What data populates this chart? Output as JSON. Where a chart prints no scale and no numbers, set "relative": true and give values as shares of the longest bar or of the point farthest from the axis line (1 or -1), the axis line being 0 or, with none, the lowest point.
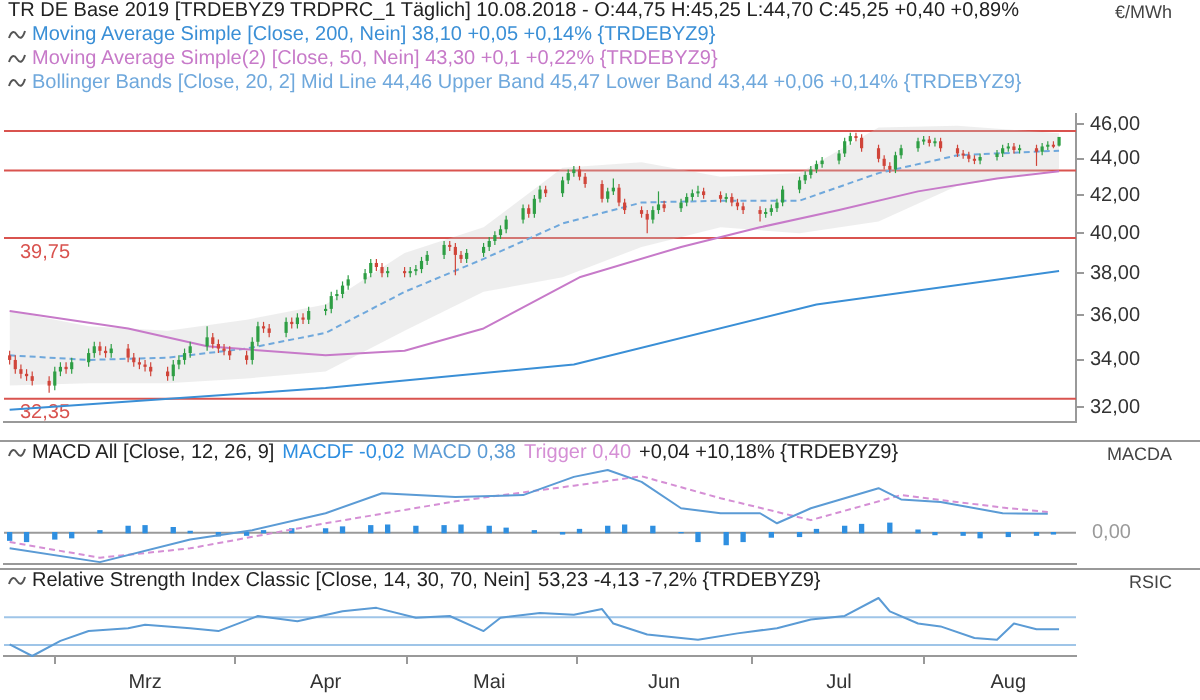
{
  "chart_data": [
    {
      "type": "candlestick",
      "title": "TR DE Base 2019 [TRDEBYZ9 TRDPRC_1 Täglich] 10.08.2018 - O:44,75 H:45,25 L:44,70 C:45,25 +0,40 +0,89%",
      "ylabel": "€/MWh",
      "log": true,
      "legend": "top",
      "tick_labels": "y",
      "x": [
        "2018-02-05",
        "2018-02-06",
        "2018-02-07",
        "2018-02-08",
        "2018-02-09",
        "2018-02-12",
        "2018-02-13",
        "2018-02-14",
        "2018-02-15",
        "2018-02-16",
        "2018-02-19",
        "2018-02-20",
        "2018-02-21",
        "2018-02-22",
        "2018-02-23",
        "2018-02-26",
        "2018-02-27",
        "2018-02-28",
        "2018-03-01",
        "2018-03-02",
        "2018-03-05",
        "2018-03-06",
        "2018-03-07",
        "2018-03-08",
        "2018-03-09",
        "2018-03-12",
        "2018-03-13",
        "2018-03-14",
        "2018-03-15",
        "2018-03-16",
        "2018-03-19",
        "2018-03-20",
        "2018-03-21",
        "2018-03-22",
        "2018-03-23",
        "2018-03-26",
        "2018-03-27",
        "2018-03-28",
        "2018-03-29",
        "2018-03-30",
        "2018-04-02",
        "2018-04-03",
        "2018-04-04",
        "2018-04-05",
        "2018-04-06",
        "2018-04-09",
        "2018-04-10",
        "2018-04-11",
        "2018-04-12",
        "2018-04-13",
        "2018-04-16",
        "2018-04-17",
        "2018-04-18",
        "2018-04-19",
        "2018-04-20",
        "2018-04-23",
        "2018-04-24",
        "2018-04-25",
        "2018-04-26",
        "2018-04-27",
        "2018-04-30",
        "2018-05-01",
        "2018-05-02",
        "2018-05-03",
        "2018-05-04",
        "2018-05-07",
        "2018-05-08",
        "2018-05-09",
        "2018-05-10",
        "2018-05-11",
        "2018-05-14",
        "2018-05-15",
        "2018-05-16",
        "2018-05-17",
        "2018-05-18",
        "2018-05-21",
        "2018-05-22",
        "2018-05-23",
        "2018-05-24",
        "2018-05-25",
        "2018-05-28",
        "2018-05-29",
        "2018-05-30",
        "2018-05-31",
        "2018-06-01",
        "2018-06-04",
        "2018-06-05",
        "2018-06-06",
        "2018-06-07",
        "2018-06-08",
        "2018-06-11",
        "2018-06-12",
        "2018-06-13",
        "2018-06-14",
        "2018-06-15",
        "2018-06-18",
        "2018-06-19",
        "2018-06-20",
        "2018-06-21",
        "2018-06-22",
        "2018-06-25",
        "2018-06-26",
        "2018-06-27",
        "2018-06-28",
        "2018-06-29",
        "2018-07-02",
        "2018-07-03",
        "2018-07-04",
        "2018-07-05",
        "2018-07-06",
        "2018-07-09",
        "2018-07-10",
        "2018-07-11",
        "2018-07-12",
        "2018-07-13",
        "2018-07-16",
        "2018-07-17",
        "2018-07-18",
        "2018-07-19",
        "2018-07-20",
        "2018-07-23",
        "2018-07-24",
        "2018-07-25",
        "2018-07-26",
        "2018-07-27",
        "2018-07-30",
        "2018-07-31",
        "2018-08-01",
        "2018-08-02",
        "2018-08-03",
        "2018-08-06",
        "2018-08-07",
        "2018-08-08",
        "2018-08-09",
        "2018-08-10"
      ],
      "ohlc": [
        [
          34.2,
          34.4,
          33.8,
          34.0
        ],
        [
          34.0,
          34.2,
          33.4,
          33.6
        ],
        [
          33.6,
          33.8,
          33.2,
          33.4
        ],
        [
          33.4,
          33.6,
          33.1,
          33.3
        ],
        [
          33.3,
          33.5,
          32.9,
          33.1
        ],
        [
          33.1,
          33.3,
          32.6,
          32.9
        ],
        [
          32.9,
          33.7,
          32.7,
          33.5
        ],
        [
          33.5,
          33.9,
          33.3,
          33.7
        ],
        [
          33.7,
          33.9,
          33.4,
          33.6
        ],
        [
          33.6,
          34.1,
          33.4,
          33.9
        ],
        [
          33.9,
          34.5,
          33.7,
          34.3
        ],
        [
          34.3,
          34.8,
          34.1,
          34.6
        ],
        [
          34.6,
          34.8,
          34.2,
          34.4
        ],
        [
          34.4,
          34.6,
          34.1,
          34.3
        ],
        [
          34.3,
          34.7,
          34.1,
          34.5
        ],
        [
          34.5,
          34.7,
          33.9,
          34.1
        ],
        [
          34.1,
          34.3,
          33.7,
          33.9
        ],
        [
          33.9,
          34.1,
          33.6,
          33.8
        ],
        [
          33.8,
          34.0,
          33.5,
          33.7
        ],
        [
          33.7,
          33.9,
          33.3,
          33.5
        ],
        [
          33.5,
          33.7,
          33.1,
          33.3
        ],
        [
          33.3,
          34.0,
          33.1,
          33.8
        ],
        [
          33.8,
          34.2,
          33.6,
          34.0
        ],
        [
          34.0,
          34.5,
          33.8,
          34.3
        ],
        [
          34.3,
          34.8,
          34.1,
          34.6
        ],
        [
          34.6,
          35.5,
          34.4,
          35.0
        ],
        [
          35.0,
          35.2,
          34.5,
          34.7
        ],
        [
          34.7,
          34.9,
          34.3,
          34.5
        ],
        [
          34.5,
          34.7,
          34.2,
          34.4
        ],
        [
          34.4,
          34.6,
          34.0,
          34.2
        ],
        [
          34.2,
          34.4,
          33.8,
          34.0
        ],
        [
          34.0,
          35.0,
          33.8,
          34.8
        ],
        [
          34.8,
          35.7,
          34.6,
          35.5
        ],
        [
          35.5,
          35.7,
          35.2,
          35.4
        ],
        [
          35.4,
          35.6,
          35.0,
          35.2
        ],
        [
          35.2,
          35.9,
          35.0,
          35.7
        ],
        [
          35.7,
          35.9,
          35.4,
          35.6
        ],
        [
          35.6,
          36.1,
          35.4,
          35.9
        ],
        [
          35.9,
          36.1,
          35.6,
          35.8
        ],
        [
          35.8,
          36.4,
          35.6,
          36.2
        ],
        [
          36.2,
          36.5,
          36.0,
          36.3
        ],
        [
          36.3,
          37.1,
          36.1,
          36.9
        ],
        [
          36.9,
          37.2,
          36.7,
          37.0
        ],
        [
          37.0,
          37.6,
          36.8,
          37.4
        ],
        [
          37.4,
          37.9,
          37.2,
          37.7
        ],
        [
          37.7,
          38.2,
          37.5,
          38.0
        ],
        [
          38.0,
          38.7,
          37.8,
          38.5
        ],
        [
          38.5,
          38.7,
          38.1,
          38.3
        ],
        [
          38.3,
          38.5,
          37.8,
          38.0
        ],
        [
          38.0,
          38.3,
          37.8,
          38.1
        ],
        [
          38.1,
          38.3,
          37.8,
          38.0
        ],
        [
          38.0,
          38.3,
          37.8,
          38.1
        ],
        [
          38.1,
          38.4,
          37.9,
          38.2
        ],
        [
          38.2,
          38.8,
          38.0,
          38.6
        ],
        [
          38.6,
          39.1,
          38.4,
          38.9
        ],
        [
          38.9,
          39.6,
          38.7,
          39.4
        ],
        [
          39.4,
          39.6,
          39.1,
          39.3
        ],
        [
          39.3,
          39.5,
          37.9,
          38.9
        ],
        [
          38.9,
          39.1,
          38.5,
          38.7
        ],
        [
          38.7,
          39.2,
          38.5,
          39.0
        ],
        [
          39.0,
          39.5,
          38.8,
          39.3
        ],
        [
          39.3,
          39.8,
          39.1,
          39.6
        ],
        [
          39.6,
          40.1,
          39.4,
          39.9
        ],
        [
          39.9,
          40.4,
          39.7,
          40.2
        ],
        [
          40.2,
          40.9,
          40.0,
          40.7
        ],
        [
          40.7,
          41.5,
          40.5,
          41.3
        ],
        [
          41.3,
          41.5,
          40.8,
          41.0
        ],
        [
          41.0,
          42.0,
          40.8,
          41.8
        ],
        [
          41.8,
          42.5,
          41.6,
          42.3
        ],
        [
          42.3,
          42.5,
          41.9,
          42.1
        ],
        [
          42.1,
          43.0,
          41.9,
          42.8
        ],
        [
          42.8,
          43.4,
          42.6,
          43.2
        ],
        [
          43.2,
          43.6,
          43.0,
          43.4
        ],
        [
          43.4,
          43.6,
          42.8,
          43.0
        ],
        [
          43.0,
          43.2,
          42.4,
          42.6
        ],
        [
          42.6,
          42.8,
          41.6,
          41.8
        ],
        [
          41.8,
          42.4,
          41.6,
          42.2
        ],
        [
          42.2,
          42.9,
          42.0,
          42.4
        ],
        [
          42.4,
          42.6,
          41.4,
          41.6
        ],
        [
          41.6,
          41.8,
          41.0,
          41.2
        ],
        [
          41.2,
          41.4,
          40.8,
          41.0
        ],
        [
          41.0,
          41.2,
          40.0,
          40.7
        ],
        [
          40.7,
          41.4,
          40.5,
          41.2
        ],
        [
          41.2,
          42.2,
          41.0,
          41.5
        ],
        [
          41.5,
          41.7,
          41.1,
          41.3
        ],
        [
          41.3,
          41.8,
          41.1,
          41.6
        ],
        [
          41.6,
          42.1,
          41.4,
          41.9
        ],
        [
          41.9,
          42.3,
          41.7,
          42.1
        ],
        [
          42.1,
          42.5,
          41.9,
          42.2
        ],
        [
          42.2,
          42.4,
          41.8,
          42.0
        ],
        [
          42.0,
          42.2,
          41.6,
          41.8
        ],
        [
          41.8,
          42.1,
          41.6,
          41.9
        ],
        [
          41.9,
          42.1,
          41.4,
          41.6
        ],
        [
          41.6,
          41.8,
          41.2,
          41.4
        ],
        [
          41.4,
          41.6,
          41.0,
          41.2
        ],
        [
          41.2,
          41.4,
          40.6,
          41.0
        ],
        [
          41.0,
          41.3,
          40.8,
          41.1
        ],
        [
          41.1,
          41.5,
          40.9,
          41.3
        ],
        [
          41.3,
          41.8,
          41.1,
          41.6
        ],
        [
          41.6,
          42.5,
          41.4,
          42.3
        ],
        [
          42.3,
          43.0,
          42.1,
          42.8
        ],
        [
          42.8,
          43.3,
          42.6,
          43.1
        ],
        [
          43.1,
          43.6,
          42.9,
          43.4
        ],
        [
          43.4,
          43.9,
          43.2,
          43.7
        ],
        [
          43.7,
          44.1,
          43.5,
          43.9
        ],
        [
          43.9,
          44.5,
          43.7,
          44.3
        ],
        [
          44.3,
          45.2,
          44.1,
          45.0
        ],
        [
          45.0,
          45.5,
          44.8,
          45.3
        ],
        [
          45.3,
          45.5,
          45.0,
          45.2
        ],
        [
          45.2,
          45.4,
          44.4,
          44.6
        ],
        [
          44.6,
          44.8,
          43.8,
          44.0
        ],
        [
          44.0,
          44.2,
          43.4,
          43.6
        ],
        [
          43.6,
          43.8,
          43.2,
          43.4
        ],
        [
          43.4,
          44.4,
          43.2,
          44.2
        ],
        [
          44.2,
          44.8,
          44.0,
          44.6
        ],
        [
          44.6,
          45.2,
          44.4,
          45.0
        ],
        [
          45.0,
          45.3,
          44.8,
          45.1
        ],
        [
          45.1,
          45.3,
          44.7,
          44.9
        ],
        [
          44.9,
          45.2,
          44.7,
          45.0
        ],
        [
          45.0,
          45.2,
          44.4,
          44.6
        ],
        [
          44.6,
          44.8,
          44.1,
          44.3
        ],
        [
          44.3,
          44.5,
          44.0,
          44.2
        ],
        [
          44.2,
          44.4,
          43.8,
          44.0
        ],
        [
          44.0,
          44.2,
          43.7,
          43.9
        ],
        [
          43.9,
          44.3,
          43.7,
          44.1
        ],
        [
          44.1,
          44.5,
          43.9,
          44.3
        ],
        [
          44.3,
          44.8,
          44.1,
          44.6
        ],
        [
          44.6,
          44.9,
          44.4,
          44.7
        ],
        [
          44.7,
          44.9,
          44.3,
          44.5
        ],
        [
          44.5,
          44.8,
          44.3,
          44.6
        ],
        [
          44.6,
          44.8,
          43.6,
          44.4
        ],
        [
          44.4,
          44.9,
          44.2,
          44.7
        ],
        [
          44.7,
          45.0,
          44.5,
          44.8
        ],
        [
          44.8,
          45.0,
          44.6,
          44.75
        ],
        [
          44.75,
          45.25,
          44.7,
          45.25
        ]
      ],
      "series": [
        {
          "name": "Moving Average Simple [Close, 200, Nein] 38,10 +0,05 +0,14% {TRDEBYZ9}",
          "type": "line",
          "color": "#3a8fd6",
          "x": [
            "2018-02-05",
            "2018-04-02",
            "2018-05-16",
            "2018-06-28",
            "2018-08-10"
          ],
          "values": [
            31.9,
            32.8,
            33.8,
            36.5,
            38.1
          ]
        },
        {
          "name": "Moving Average Simple(2) [Close, 50, Nein] 43,30 +0,1 +0,22% {TRDEBYZ9}",
          "type": "line",
          "color": "#c77ac9",
          "x": [
            "2018-02-05",
            "2018-02-26",
            "2018-03-12",
            "2018-04-02",
            "2018-04-16",
            "2018-04-30",
            "2018-05-17",
            "2018-06-04",
            "2018-06-18",
            "2018-07-02",
            "2018-07-16",
            "2018-07-30",
            "2018-08-10"
          ],
          "values": [
            36.2,
            35.4,
            34.6,
            34.2,
            34.4,
            35.4,
            37.8,
            39.3,
            40.3,
            41.2,
            42.2,
            42.9,
            43.3
          ]
        },
        {
          "name": "Bollinger Bands [Close, 20, 2] Mid Line 44,46 Upper Band 45,47 Lower Band 43,44 +0,06 +0,14% {TRDEBYZ9}",
          "type": "line",
          "color": "#6fa8dc",
          "line_style": "dashed",
          "x": [
            "2018-02-05",
            "2018-02-19",
            "2018-03-05",
            "2018-03-19",
            "2018-04-02",
            "2018-04-16",
            "2018-04-30",
            "2018-05-14",
            "2018-05-28",
            "2018-06-11",
            "2018-06-25",
            "2018-07-09",
            "2018-07-23",
            "2018-08-10"
          ],
          "values": [
            34.2,
            34.0,
            34.1,
            34.5,
            35.2,
            37.1,
            38.7,
            40.5,
            41.6,
            41.7,
            41.7,
            43.2,
            44.2,
            44.46
          ],
          "lower": [
            32.9,
            33.0,
            33.0,
            33.2,
            33.5,
            35.3,
            37.1,
            37.8,
            39.3,
            40.3,
            40.0,
            40.6,
            42.5,
            43.44
          ],
          "upper": [
            36.2,
            35.5,
            35.3,
            35.8,
            36.5,
            39.0,
            40.3,
            43.5,
            43.8,
            43.0,
            43.2,
            45.8,
            45.9,
            45.47
          ]
        }
      ],
      "xlim": [
        "2018-02-04",
        "2018-08-13"
      ],
      "ylim": [
        31.4,
        46.6
      ],
      "yticks": [
        {
          "value": 32,
          "label": "32,00"
        },
        {
          "value": 34,
          "label": "34,00"
        },
        {
          "value": 36,
          "label": "36,00"
        },
        {
          "value": 38,
          "label": "38,00"
        },
        {
          "value": 40,
          "label": "40,00"
        },
        {
          "value": 42,
          "label": "42,00"
        },
        {
          "value": 44,
          "label": "44,00"
        },
        {
          "value": 46,
          "label": "46,00"
        }
      ],
      "ref_lines": [
        {
          "axis": "y",
          "value": 45.6,
          "color": "#d9534f"
        },
        {
          "axis": "y",
          "value": 43.35,
          "color": "#d9534f"
        },
        {
          "axis": "y",
          "value": 39.75,
          "label": "39,75",
          "color": "#d9534f"
        },
        {
          "axis": "y",
          "value": 32.35,
          "label": "32,35",
          "color": "#d9534f"
        }
      ]
    },
    {
      "type": "line",
      "title": "MACD All [Close, 12, 26, 9]",
      "ylabel": "MACDA",
      "relative": true,
      "legend": "top",
      "tick_labels": false,
      "xlim": [
        "2018-02-04",
        "2018-08-13"
      ],
      "annotations": [
        "+0,04 +10,18% {TRDEBYZ9}"
      ],
      "series": [
        {
          "name": "MACDF -0,02",
          "type": "bar",
          "color": "#2f8fe0",
          "x": [
            "2018-02-05",
            "2018-02-08",
            "2018-02-13",
            "2018-02-16",
            "2018-02-21",
            "2018-02-26",
            "2018-03-01",
            "2018-03-06",
            "2018-03-09",
            "2018-03-14",
            "2018-03-19",
            "2018-03-22",
            "2018-03-27",
            "2018-04-02",
            "2018-04-05",
            "2018-04-10",
            "2018-04-13",
            "2018-04-18",
            "2018-04-23",
            "2018-04-26",
            "2018-05-01",
            "2018-05-04",
            "2018-05-09",
            "2018-05-14",
            "2018-05-17",
            "2018-05-22",
            "2018-05-25",
            "2018-05-30",
            "2018-06-04",
            "2018-06-07",
            "2018-06-12",
            "2018-06-15",
            "2018-06-20",
            "2018-06-25",
            "2018-06-28",
            "2018-07-03",
            "2018-07-06",
            "2018-07-11",
            "2018-07-16",
            "2018-07-19",
            "2018-07-24",
            "2018-07-27",
            "2018-08-01",
            "2018-08-06",
            "2018-08-09"
          ],
          "values": [
            -0.12,
            -0.14,
            -0.1,
            -0.08,
            0.03,
            0.1,
            0.11,
            0.08,
            0.02,
            -0.05,
            -0.04,
            0.03,
            0.06,
            0.06,
            0.09,
            0.11,
            0.12,
            0.1,
            0.11,
            0.12,
            0.1,
            0.07,
            0.03,
            -0.02,
            0.05,
            0.1,
            0.12,
            0.1,
            0.0,
            -0.14,
            -0.19,
            -0.14,
            -0.07,
            -0.06,
            0.05,
            0.1,
            0.13,
            0.15,
            0.04,
            -0.03,
            -0.04,
            -0.08,
            -0.06,
            -0.04,
            -0.02
          ]
        },
        {
          "name": "MACD 0,38",
          "type": "line",
          "color": "#5b9bd5",
          "x": [
            "2018-02-05",
            "2018-02-21",
            "2018-03-09",
            "2018-03-20",
            "2018-04-02",
            "2018-04-12",
            "2018-04-25",
            "2018-05-07",
            "2018-05-16",
            "2018-05-22",
            "2018-05-28",
            "2018-06-04",
            "2018-06-11",
            "2018-06-18",
            "2018-06-21",
            "2018-06-27",
            "2018-07-09",
            "2018-07-13",
            "2018-07-20",
            "2018-07-31",
            "2018-08-08"
          ],
          "values": [
            -0.25,
            -0.47,
            -0.11,
            0.04,
            0.31,
            0.63,
            0.57,
            0.6,
            0.89,
            1.0,
            0.81,
            0.39,
            0.31,
            0.31,
            0.15,
            0.39,
            0.71,
            0.53,
            0.49,
            0.31,
            0.3
          ]
        },
        {
          "name": "Trigger 0,40",
          "type": "line",
          "color": "#d58fd5",
          "line_style": "dashed",
          "x": [
            "2018-02-05",
            "2018-02-21",
            "2018-03-09",
            "2018-04-02",
            "2018-04-25",
            "2018-05-16",
            "2018-05-28",
            "2018-06-11",
            "2018-06-27",
            "2018-07-13",
            "2018-07-31",
            "2018-08-08"
          ],
          "values": [
            -0.15,
            -0.4,
            -0.25,
            0.15,
            0.5,
            0.75,
            0.9,
            0.55,
            0.2,
            0.6,
            0.4,
            0.33
          ]
        }
      ],
      "ref_lines": [
        {
          "axis": "y",
          "value": 0,
          "label": "0,00",
          "color": "#9a9a9a"
        }
      ]
    },
    {
      "type": "line",
      "title": "Relative Strength Index Classic [Close, 14, 30, 70, Nein]",
      "ylabel": "RSIC",
      "relative": true,
      "tick_labels": "x",
      "xlim": [
        "2018-02-04",
        "2018-08-13"
      ],
      "xticks": [
        {
          "value": "2018-03-01",
          "label": "Mrz"
        },
        {
          "value": "2018-04-02",
          "label": "Apr"
        },
        {
          "value": "2018-05-01",
          "label": "Mai"
        },
        {
          "value": "2018-06-01",
          "label": "Jun"
        },
        {
          "value": "2018-07-02",
          "label": "Jul"
        },
        {
          "value": "2018-08-01",
          "label": "Aug"
        }
      ],
      "annotations": [
        "53,23 -4,13 -7,2% {TRDEBYZ9}"
      ],
      "series": [
        {
          "type": "line",
          "color": "#5b9bd5",
          "x": [
            "2018-02-05",
            "2018-02-09",
            "2018-02-14",
            "2018-02-19",
            "2018-02-26",
            "2018-03-01",
            "2018-03-09",
            "2018-03-14",
            "2018-03-21",
            "2018-03-28",
            "2018-04-05",
            "2018-04-11",
            "2018-04-18",
            "2018-04-24",
            "2018-04-30",
            "2018-05-03",
            "2018-05-10",
            "2018-05-16",
            "2018-05-21",
            "2018-05-23",
            "2018-05-29",
            "2018-06-04",
            "2018-06-07",
            "2018-06-14",
            "2018-06-21",
            "2018-06-27",
            "2018-07-03",
            "2018-07-09",
            "2018-07-11",
            "2018-07-16",
            "2018-07-20",
            "2018-07-26",
            "2018-07-30",
            "2018-08-02",
            "2018-08-06",
            "2018-08-08",
            "2018-08-10"
          ],
          "values": [
            0.2,
            0,
            0.26,
            0.43,
            0.48,
            0.54,
            0.48,
            0.43,
            0.69,
            0.6,
            0.77,
            0.83,
            0.66,
            0.69,
            0.43,
            0.66,
            0.74,
            0.71,
            0.81,
            0.56,
            0.37,
            0.31,
            0.28,
            0.39,
            0.48,
            0.63,
            0.69,
            1,
            0.77,
            0.56,
            0.51,
            0.31,
            0.28,
            0.56,
            0.46,
            0.46,
            0.46
          ]
        }
      ],
      "ref_lines": [
        {
          "axis": "y",
          "value": 0.67,
          "color": "#9fc5e8"
        },
        {
          "axis": "y",
          "value": 0.19,
          "color": "#9fc5e8"
        }
      ]
    }
  ]
}
